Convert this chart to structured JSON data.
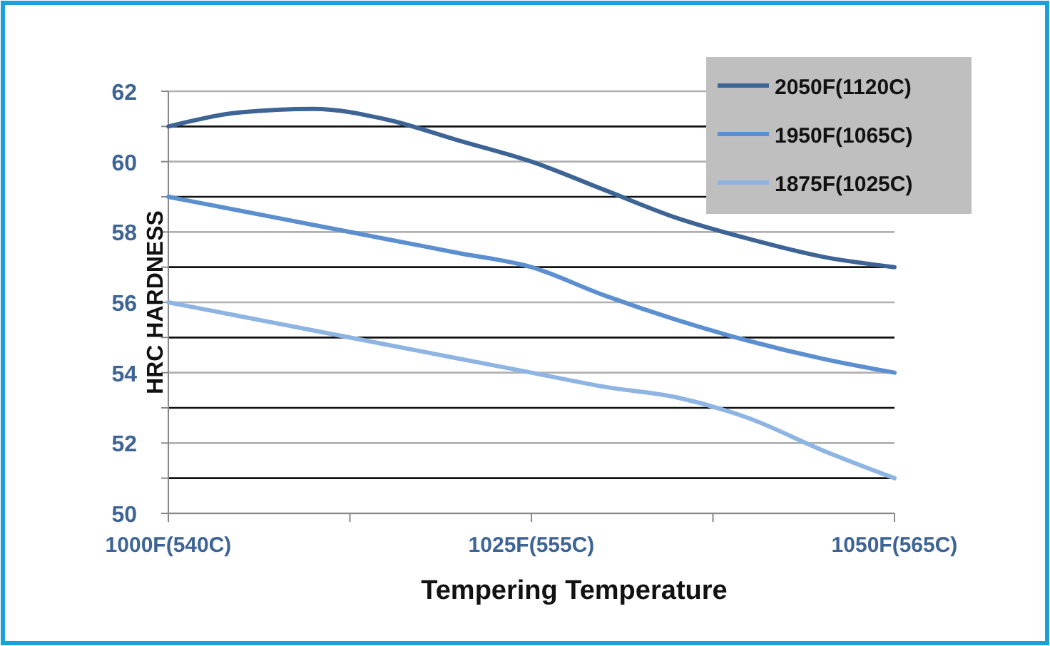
{
  "chart_data": {
    "type": "line",
    "xlabel": "Tempering Temperature",
    "ylabel": "HRC HARDNESS",
    "categories": [
      "1000F(540C)",
      null,
      null,
      null,
      null,
      "1025F(555C)",
      null,
      null,
      null,
      null,
      "1050F(565C)"
    ],
    "ylim": [
      50,
      62
    ],
    "yticks": [
      50,
      {
        "value": 51,
        "label": null
      },
      52,
      {
        "value": 53,
        "label": null
      },
      54,
      {
        "value": 55,
        "label": null
      },
      56,
      {
        "value": 57,
        "label": null
      },
      58,
      {
        "value": 59,
        "label": null
      },
      60,
      {
        "value": 61,
        "label": null
      },
      62
    ],
    "grid": "y",
    "legend": "top right",
    "marker": "none",
    "line_style": "solid",
    "series": [
      {
        "name": "2050F(1120C)",
        "color": "#3d6494",
        "values": [
          61,
          61.4,
          61.5,
          61.2,
          60.6,
          60,
          59.2,
          58.4,
          57.8,
          57.3,
          57
        ]
      },
      {
        "name": "1950F(1065C)",
        "color": "#5b8fd0",
        "values": [
          59,
          58.6,
          58.2,
          57.8,
          57.4,
          57,
          56.2,
          55.5,
          54.9,
          54.4,
          54
        ]
      },
      {
        "name": "1875F(1025C)",
        "color": "#8db4e2",
        "values": [
          56,
          55.6,
          55.2,
          54.8,
          54.4,
          54,
          53.6,
          53.3,
          52.7,
          51.8,
          51
        ]
      }
    ]
  }
}
